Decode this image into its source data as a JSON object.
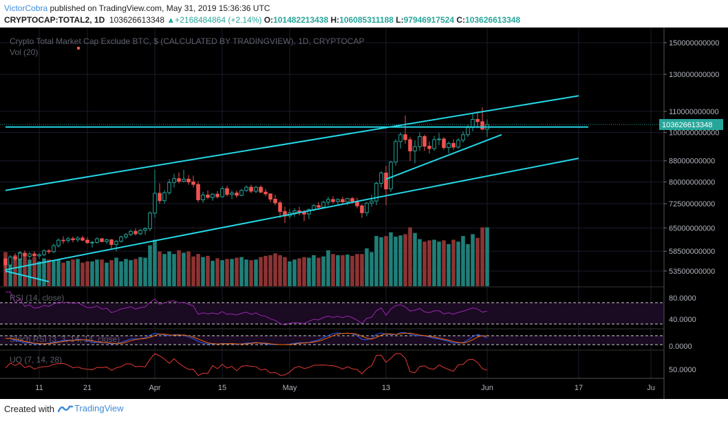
{
  "header": {
    "author": "VictorCobra",
    "published_text": "published on TradingView.com, May 31, 2019 15:36:36 UTC",
    "symbol": "CRYPTOCAP:TOTAL2, 1D",
    "last_price": "103626613348",
    "change": "+2168484864 (+2.14%)",
    "open_label": "O:",
    "open": "101482213438",
    "high_label": "H:",
    "high": "106085311188",
    "low_label": "L:",
    "low": "97946917524",
    "close_label": "C:",
    "close": "103626613348",
    "up_arrow": "▲"
  },
  "chart": {
    "title": "Crypto Total Market Cap Exclude BTC, $ (CALCULATED BY TRADINGVIEW), 1D, CRYPTOCAP",
    "volume_label": "Vol (20)",
    "price_badge": "103626613348",
    "colors": {
      "background": "#000000",
      "up": "#26a69a",
      "down": "#ef5350",
      "volume_up": "#1f7f78",
      "volume_down": "#8d3333",
      "trendline": "#24d8e8",
      "rsi": "#9c27b0",
      "stoch_k": "#2962ff",
      "stoch_d": "#ff6d00",
      "uo": "#e53935",
      "grid": "#1c1c2e",
      "axis_text": "#b2b5be",
      "badge_bg": "#26a69a"
    },
    "price_axis_labels": [
      "150000000000",
      "130000000000",
      "110000000000",
      "100000000000",
      "88000000000",
      "80000000000",
      "72500000000",
      "65000000000",
      "58500000000",
      "53500000000"
    ],
    "time_axis_labels": [
      "11",
      "21",
      "Apr",
      "15",
      "May",
      "13",
      "Jun",
      "17",
      "Ju"
    ]
  },
  "chart_data": {
    "type": "candlestick",
    "scale": "log",
    "ylim": [
      50000000000,
      160000000000
    ],
    "candles_ohlc_billions": [
      [
        56.5,
        56.8,
        53.0,
        55.0
      ],
      [
        55.0,
        57.5,
        54.5,
        57.0
      ],
      [
        57.0,
        58.0,
        56.0,
        56.5
      ],
      [
        56.5,
        58.5,
        56.0,
        58.0
      ],
      [
        58.0,
        58.7,
        56.8,
        57.2
      ],
      [
        57.2,
        58.2,
        56.5,
        57.8
      ],
      [
        57.8,
        58.5,
        57.0,
        57.3
      ],
      [
        57.3,
        58.0,
        56.5,
        57.6
      ],
      [
        57.6,
        59.0,
        57.2,
        58.6
      ],
      [
        58.6,
        59.1,
        57.8,
        58.4
      ],
      [
        58.4,
        60.5,
        58.0,
        60.0
      ],
      [
        60.0,
        62.0,
        59.5,
        61.5
      ],
      [
        61.5,
        62.6,
        60.5,
        61.4
      ],
      [
        61.4,
        62.4,
        60.8,
        61.9
      ],
      [
        61.9,
        62.5,
        60.9,
        61.6
      ],
      [
        61.6,
        62.6,
        61.0,
        62.1
      ],
      [
        62.1,
        62.7,
        61.2,
        61.5
      ],
      [
        61.5,
        62.3,
        60.5,
        60.8
      ],
      [
        60.8,
        61.3,
        59.5,
        60.9
      ],
      [
        60.9,
        62.3,
        60.5,
        61.9
      ],
      [
        61.9,
        62.1,
        60.9,
        61.1
      ],
      [
        61.1,
        61.9,
        60.5,
        61.6
      ],
      [
        61.6,
        61.8,
        59.0,
        60.3
      ],
      [
        60.3,
        61.5,
        58.5,
        61.2
      ],
      [
        61.2,
        62.8,
        60.8,
        62.4
      ],
      [
        62.4,
        63.5,
        61.8,
        63.1
      ],
      [
        63.1,
        64.4,
        62.6,
        64.0
      ],
      [
        64.0,
        64.8,
        62.8,
        63.3
      ],
      [
        63.3,
        64.7,
        62.9,
        64.3
      ],
      [
        64.3,
        65.2,
        63.0,
        64.8
      ],
      [
        64.8,
        70.0,
        64.0,
        69.5
      ],
      [
        69.5,
        84.5,
        68.0,
        76.0
      ],
      [
        76.0,
        79.5,
        72.5,
        73.5
      ],
      [
        73.5,
        77.0,
        72.5,
        76.2
      ],
      [
        76.2,
        81.0,
        75.5,
        79.8
      ],
      [
        79.8,
        83.0,
        78.0,
        81.2
      ],
      [
        81.2,
        83.5,
        79.5,
        80.2
      ],
      [
        80.2,
        84.5,
        79.8,
        81.0
      ],
      [
        81.0,
        82.5,
        79.0,
        80.0
      ],
      [
        80.0,
        82.3,
        78.0,
        79.1
      ],
      [
        79.1,
        80.2,
        73.0,
        73.8
      ],
      [
        73.8,
        76.5,
        72.8,
        75.4
      ],
      [
        75.4,
        77.0,
        74.0,
        74.6
      ],
      [
        74.6,
        76.0,
        73.5,
        75.7
      ],
      [
        75.7,
        76.8,
        74.2,
        74.8
      ],
      [
        74.8,
        78.5,
        74.5,
        77.6
      ],
      [
        77.6,
        78.6,
        75.0,
        75.6
      ],
      [
        75.6,
        77.0,
        74.0,
        76.1
      ],
      [
        76.1,
        77.0,
        74.5,
        75.3
      ],
      [
        75.3,
        77.5,
        75.0,
        77.0
      ],
      [
        77.0,
        78.8,
        76.5,
        78.1
      ],
      [
        78.1,
        79.0,
        76.0,
        76.7
      ],
      [
        76.7,
        78.6,
        76.0,
        78.1
      ],
      [
        78.1,
        78.7,
        76.0,
        76.4
      ],
      [
        76.4,
        77.5,
        75.0,
        75.8
      ],
      [
        75.8,
        76.0,
        73.0,
        74.0
      ],
      [
        74.0,
        75.5,
        72.0,
        72.8
      ],
      [
        72.8,
        73.5,
        68.0,
        70.0
      ],
      [
        70.0,
        71.5,
        66.5,
        68.6
      ],
      [
        68.6,
        70.8,
        67.8,
        69.6
      ],
      [
        69.6,
        71.0,
        68.3,
        70.2
      ],
      [
        70.2,
        71.5,
        68.8,
        69.8
      ],
      [
        69.8,
        70.5,
        67.0,
        69.2
      ],
      [
        69.2,
        71.0,
        67.6,
        70.6
      ],
      [
        70.6,
        72.3,
        70.0,
        71.9
      ],
      [
        71.9,
        73.0,
        70.5,
        71.4
      ],
      [
        71.4,
        73.5,
        71.0,
        73.0
      ],
      [
        73.0,
        74.8,
        72.0,
        73.9
      ],
      [
        73.9,
        75.0,
        72.5,
        73.2
      ],
      [
        73.2,
        74.3,
        72.2,
        73.9
      ],
      [
        73.9,
        74.8,
        72.5,
        73.1
      ],
      [
        73.1,
        74.5,
        72.0,
        74.2
      ],
      [
        74.2,
        74.8,
        72.5,
        73.3
      ],
      [
        73.3,
        74.5,
        71.0,
        71.8
      ],
      [
        71.8,
        72.4,
        68.0,
        69.6
      ],
      [
        69.6,
        73.0,
        68.5,
        72.7
      ],
      [
        72.7,
        75.5,
        71.5,
        73.4
      ],
      [
        73.4,
        80.0,
        72.0,
        79.5
      ],
      [
        79.5,
        84.0,
        78.0,
        83.3
      ],
      [
        83.3,
        86.0,
        72.0,
        77.5
      ],
      [
        77.5,
        88.0,
        76.5,
        87.5
      ],
      [
        87.5,
        97.0,
        86.0,
        96.0
      ],
      [
        96.0,
        100.0,
        93.0,
        99.0
      ],
      [
        99.0,
        108.0,
        95.0,
        96.8
      ],
      [
        96.8,
        98.0,
        88.0,
        92.0
      ],
      [
        92.0,
        96.5,
        87.0,
        93.8
      ],
      [
        93.8,
        100.0,
        92.0,
        98.2
      ],
      [
        98.2,
        99.0,
        92.0,
        94.0
      ],
      [
        94.0,
        96.0,
        91.0,
        93.0
      ],
      [
        93.0,
        98.5,
        92.0,
        96.8
      ],
      [
        96.8,
        99.8,
        94.5,
        97.1
      ],
      [
        97.1,
        98.0,
        92.5,
        93.4
      ],
      [
        93.4,
        96.0,
        91.0,
        95.2
      ],
      [
        95.2,
        97.0,
        92.5,
        93.6
      ],
      [
        93.6,
        97.5,
        93.0,
        96.6
      ],
      [
        96.6,
        100.5,
        95.5,
        99.0
      ],
      [
        99.0,
        103.5,
        98.0,
        102.3
      ],
      [
        102.3,
        109.0,
        100.5,
        106.1
      ],
      [
        106.1,
        110.0,
        102.0,
        105.0
      ],
      [
        105.0,
        112.0,
        101.0,
        101.5
      ],
      [
        101.5,
        106.0,
        98.0,
        103.6
      ]
    ],
    "volume_relative": [
      0.55,
      0.4,
      0.5,
      0.55,
      0.47,
      0.43,
      0.47,
      0.4,
      0.45,
      0.43,
      0.42,
      0.43,
      0.38,
      0.41,
      0.43,
      0.44,
      0.38,
      0.4,
      0.4,
      0.43,
      0.43,
      0.38,
      0.42,
      0.46,
      0.4,
      0.44,
      0.42,
      0.44,
      0.47,
      0.46,
      0.66,
      0.75,
      0.56,
      0.52,
      0.56,
      0.52,
      0.58,
      0.54,
      0.56,
      0.48,
      0.52,
      0.47,
      0.49,
      0.41,
      0.45,
      0.42,
      0.44,
      0.44,
      0.46,
      0.47,
      0.43,
      0.42,
      0.43,
      0.47,
      0.49,
      0.5,
      0.53,
      0.5,
      0.47,
      0.4,
      0.43,
      0.45,
      0.47,
      0.46,
      0.5,
      0.46,
      0.48,
      0.58,
      0.52,
      0.5,
      0.5,
      0.51,
      0.49,
      0.52,
      0.52,
      0.61,
      0.55,
      0.81,
      0.79,
      0.81,
      0.87,
      0.8,
      0.82,
      0.84,
      0.95,
      0.86,
      0.76,
      0.72,
      0.74,
      0.75,
      0.72,
      0.74,
      0.68,
      0.75,
      0.72,
      0.81,
      0.68,
      0.84,
      0.78,
      0.95,
      0.95
    ],
    "trendlines": [
      {
        "from": [
          0,
          77.0
        ],
        "to": [
          119,
          118.0
        ]
      },
      {
        "from": [
          0,
          53.8
        ],
        "to": [
          119,
          89.0
        ]
      },
      {
        "from": [
          0,
          53.5
        ],
        "to": [
          9,
          51.0
        ]
      },
      {
        "from": [
          0,
          102.5
        ],
        "to": [
          121,
          102.5
        ]
      },
      {
        "from": [
          79,
          81.0
        ],
        "to": [
          103,
          99.0
        ]
      }
    ]
  }
}
